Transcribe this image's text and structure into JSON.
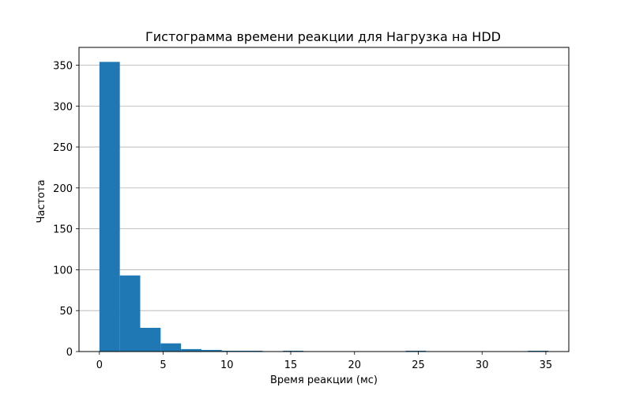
{
  "chart_data": {
    "type": "bar",
    "title": "Гистограмма времени реакции для Нагрузка на HDD",
    "xlabel": "Время реакции (мс)",
    "ylabel": "Частота",
    "xlim": [
      -1.6,
      36.8
    ],
    "ylim": [
      0,
      371.7
    ],
    "xticks": [
      0,
      5,
      10,
      15,
      20,
      25,
      30,
      35
    ],
    "yticks": [
      0,
      50,
      100,
      150,
      200,
      250,
      300,
      350
    ],
    "xtick_labels": [
      "0",
      "5",
      "10",
      "15",
      "20",
      "25",
      "30",
      "35"
    ],
    "ytick_labels": [
      "0",
      "50",
      "100",
      "150",
      "200",
      "250",
      "300",
      "350"
    ],
    "grid": "y",
    "bar_color": "#1f77b4",
    "bin_edges": [
      0,
      1.6,
      3.2,
      4.8,
      6.4,
      8.0,
      9.6,
      11.2,
      12.8,
      14.4,
      16.0,
      17.6,
      19.2,
      20.8,
      22.4,
      24.0,
      25.6,
      27.2,
      28.8,
      30.4,
      32.0,
      33.6,
      35.2
    ],
    "values": [
      354,
      93,
      29,
      10,
      3,
      2,
      1,
      1,
      0,
      1,
      0,
      0,
      0,
      0,
      0,
      1,
      0,
      0,
      0,
      0,
      0,
      1
    ]
  }
}
